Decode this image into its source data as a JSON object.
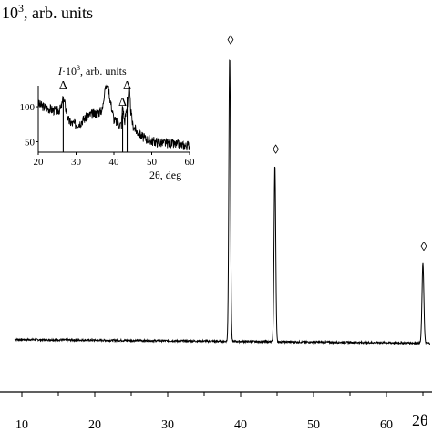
{
  "chart_data": [
    {
      "type": "line",
      "ylabel_prefix": "·10",
      "ylabel_exp": "3",
      "ylabel_suffix": ", arb. units",
      "xlabel": "2θ",
      "xlim": [
        9,
        66
      ],
      "x_ticks": [
        10,
        20,
        30,
        40,
        50,
        60
      ],
      "baseline": 0.5,
      "peaks": [
        {
          "x": 38.5,
          "height": 18.6,
          "width": 0.16
        },
        {
          "x": 44.7,
          "height": 11.5,
          "width": 0.16
        },
        {
          "x": 65.0,
          "height": 5.2,
          "width": 0.18
        }
      ],
      "peak_markers": [
        {
          "x": 38.5,
          "symbol": "◊"
        },
        {
          "x": 44.7,
          "symbol": "◊"
        },
        {
          "x": 65.0,
          "symbol": "◊"
        }
      ],
      "ylim": [
        0,
        20.5
      ]
    },
    {
      "type": "line",
      "title": "inset",
      "ylabel_italic": "I",
      "ylabel_rest": "·10",
      "ylabel_exp": "3",
      "ylabel_suffix": ", arb. units",
      "xlabel": "2θ, deg",
      "xlim": [
        20,
        60
      ],
      "ylim": [
        35,
        130
      ],
      "x_ticks": [
        20,
        30,
        40,
        50,
        60
      ],
      "y_ticks": [
        50,
        100
      ],
      "markers": [
        {
          "x": 26.6,
          "symbol": "Δ"
        },
        {
          "x": 42.3,
          "symbol": "Δ"
        },
        {
          "x": 43.5,
          "symbol": "Δ"
        }
      ],
      "x": [
        20,
        21,
        22,
        23,
        24,
        25,
        26,
        26.6,
        27,
        28,
        29,
        30,
        31,
        32,
        33,
        34,
        35,
        36,
        37,
        37.6,
        38,
        38.5,
        39,
        40,
        41,
        42,
        42.3,
        42.8,
        43.5,
        44,
        44.5,
        45,
        46,
        47,
        48,
        49,
        50,
        51,
        52,
        53,
        54,
        55,
        56,
        57,
        58,
        59,
        60
      ],
      "y": [
        104,
        101,
        99,
        97,
        95,
        94,
        97,
        112,
        104,
        80,
        76,
        75,
        77,
        82,
        86,
        89,
        90,
        92,
        96,
        128,
        130,
        130,
        110,
        82,
        76,
        74,
        103,
        78,
        100,
        130,
        92,
        73,
        65,
        60,
        55,
        53,
        51,
        50,
        49,
        48,
        48,
        47,
        46,
        46,
        45,
        44,
        45
      ]
    }
  ]
}
